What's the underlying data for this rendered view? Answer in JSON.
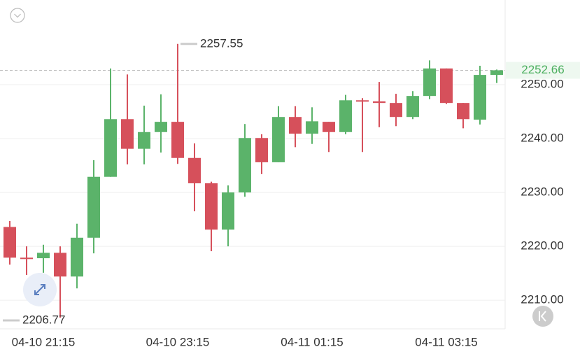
{
  "chart_data": {
    "type": "candlestick",
    "categories": [
      null,
      null,
      "04-10 21:15",
      null,
      null,
      null,
      null,
      null,
      null,
      null,
      "04-10 23:15",
      null,
      null,
      null,
      null,
      null,
      null,
      null,
      "04-11 01:15",
      null,
      null,
      null,
      null,
      null,
      null,
      null,
      "04-11 03:15",
      null,
      null,
      null
    ],
    "open": [
      2223.6,
      2217.9,
      2217.8,
      2218.8,
      2214.4,
      2221.6,
      2232.9,
      2243.6,
      2238.1,
      2241.2,
      2243.1,
      2236.4,
      2231.7,
      2223.1,
      2230.0,
      2240.1,
      2235.6,
      2244.0,
      2240.9,
      2243.1,
      2241.2,
      2247.1,
      2246.9,
      2246.6,
      2244.0,
      2247.9,
      2253.0,
      2246.6,
      2243.5,
      2251.8
    ],
    "high": [
      2224.7,
      2220.0,
      2220.3,
      2220.0,
      2224.2,
      2236.0,
      2253.0,
      2251.9,
      2246.1,
      2248.2,
      2257.55,
      2239.1,
      2232.0,
      2231.3,
      2242.7,
      2240.8,
      2246.0,
      2246.0,
      2245.8,
      2243.1,
      2248.1,
      2247.5,
      2250.5,
      2248.3,
      2248.8,
      2254.5,
      2253.0,
      2246.6,
      2253.5,
      2252.8
    ],
    "low": [
      2216.6,
      2214.7,
      2215.1,
      2206.77,
      2212.2,
      2218.7,
      2232.9,
      2235.2,
      2235.2,
      2237.4,
      2235.3,
      2226.5,
      2219.1,
      2220.0,
      2229.2,
      2233.4,
      2235.6,
      2238.4,
      2239.0,
      2237.5,
      2240.8,
      2237.5,
      2242.1,
      2242.3,
      2243.6,
      2247.3,
      2246.4,
      2241.9,
      2242.6,
      2250.3
    ],
    "close": [
      2217.9,
      2217.8,
      2218.8,
      2214.4,
      2221.6,
      2232.9,
      2243.6,
      2238.1,
      2241.2,
      2243.1,
      2236.4,
      2231.7,
      2223.1,
      2230.0,
      2240.1,
      2235.6,
      2244.0,
      2240.9,
      2243.2,
      2241.2,
      2247.1,
      2247.0,
      2246.6,
      2244.0,
      2247.9,
      2253.0,
      2246.6,
      2243.6,
      2251.8,
      2252.66
    ],
    "up_color": "#5bb36a",
    "down_color": "#d6505b",
    "ylim": [
      2204.7,
      2265.7
    ],
    "yticks": [
      {
        "value": 2210,
        "label": "2210.00"
      },
      {
        "value": 2220,
        "label": "2220.00"
      },
      {
        "value": 2230,
        "label": "2230.00"
      },
      {
        "value": 2240,
        "label": "2240.00"
      },
      {
        "value": 2250,
        "label": "2250.00"
      }
    ],
    "grid": true,
    "last_price": 2252.66,
    "last_price_color": "#4caf5f",
    "high_marker": 2257.55,
    "low_marker": 2206.77
  }
}
